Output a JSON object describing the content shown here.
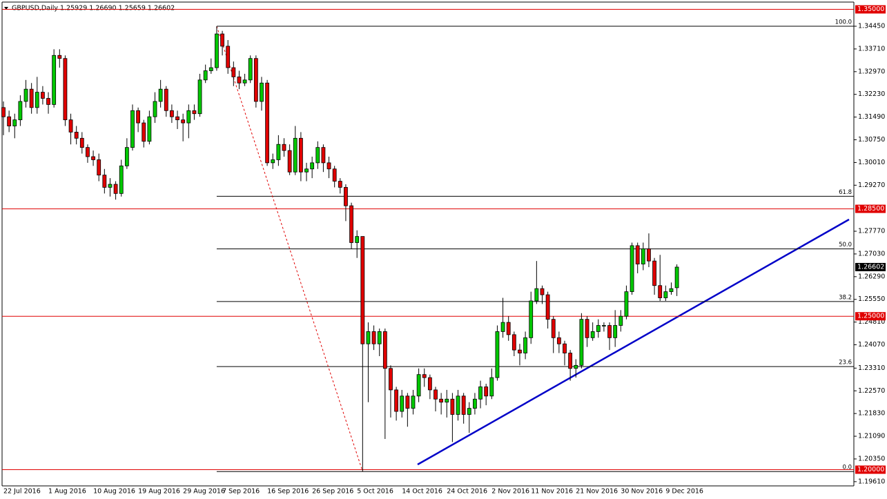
{
  "chart_data": {
    "type": "candlestick",
    "title": "GBPUSD,Daily  1.25929 1.26690 1.25659 1.26602",
    "categories": [
      "22 Jul 2016",
      null,
      null,
      null,
      null,
      null,
      null,
      null,
      "1 Aug 2016",
      null,
      null,
      null,
      null,
      null,
      null,
      null,
      "10 Aug 2016",
      null,
      null,
      null,
      null,
      null,
      null,
      null,
      "19 Aug 2016",
      null,
      null,
      null,
      null,
      null,
      null,
      null,
      "29 Aug 2016",
      null,
      null,
      null,
      null,
      null,
      null,
      "7 Sep 2016",
      null,
      null,
      null,
      null,
      null,
      null,
      null,
      "16 Sep 2016",
      null,
      null,
      null,
      null,
      null,
      null,
      null,
      "26 Sep 2016",
      null,
      null,
      null,
      null,
      null,
      null,
      null,
      "5 Oct 2016",
      null,
      null,
      null,
      null,
      null,
      null,
      null,
      "14 Oct 2016",
      null,
      null,
      null,
      null,
      null,
      null,
      null,
      "24 Oct 2016",
      null,
      null,
      null,
      null,
      null,
      null,
      null,
      "2 Nov 2016",
      null,
      null,
      null,
      null,
      null,
      null,
      "11 Nov 2016",
      null,
      null,
      null,
      null,
      null,
      null,
      null,
      "21 Nov 2016",
      null,
      null,
      null,
      null,
      null,
      null,
      null,
      "30 Nov 2016",
      null,
      null,
      null,
      null,
      null,
      null,
      null,
      "9 Dec 2016",
      null,
      null
    ],
    "open": [
      1.318,
      1.315,
      1.312,
      1.314,
      1.32,
      1.324,
      1.318,
      1.323,
      1.321,
      1.319,
      1.335,
      1.334,
      1.314,
      1.31,
      1.308,
      1.305,
      1.302,
      1.301,
      1.296,
      1.292,
      1.293,
      1.29,
      1.299,
      1.305,
      1.317,
      1.313,
      1.307,
      1.315,
      1.32,
      1.324,
      1.317,
      1.315,
      1.314,
      1.313,
      1.317,
      1.316,
      1.327,
      1.33,
      1.331,
      1.342,
      1.338,
      1.331,
      1.328,
      1.326,
      1.327,
      1.334,
      1.32,
      1.326,
      1.3,
      1.301,
      1.306,
      1.304,
      1.297,
      1.308,
      1.297,
      1.298,
      1.3,
      1.305,
      1.3,
      1.298,
      1.294,
      1.292,
      1.286,
      1.274,
      1.276,
      1.241,
      1.245,
      1.241,
      1.245,
      1.233,
      1.226,
      1.219,
      1.224,
      1.22,
      1.224,
      1.231,
      1.23,
      1.226,
      1.223,
      1.222,
      1.223,
      1.218,
      1.224,
      1.218,
      1.22,
      1.223,
      1.227,
      1.224,
      1.23,
      1.245,
      1.248,
      1.244,
      1.239,
      1.238,
      1.243,
      1.255,
      1.259,
      1.257,
      1.249,
      1.243,
      1.241,
      1.238,
      1.233,
      1.234,
      1.249,
      1.243,
      1.245,
      1.247,
      1.247,
      1.243,
      1.247,
      1.25,
      1.258,
      1.273,
      1.267,
      1.272,
      1.268,
      1.26,
      1.256,
      1.258,
      1.25929
    ],
    "high": [
      1.32,
      1.317,
      1.316,
      1.322,
      1.327,
      1.326,
      1.328,
      1.325,
      1.323,
      1.337,
      1.337,
      1.335,
      1.316,
      1.312,
      1.31,
      1.306,
      1.304,
      1.303,
      1.298,
      1.295,
      1.294,
      1.301,
      1.308,
      1.319,
      1.318,
      1.314,
      1.317,
      1.323,
      1.327,
      1.325,
      1.319,
      1.317,
      1.316,
      1.319,
      1.319,
      1.329,
      1.332,
      1.334,
      1.3445,
      1.343,
      1.34,
      1.333,
      1.33,
      1.329,
      1.335,
      1.335,
      1.328,
      1.327,
      1.303,
      1.309,
      1.308,
      1.306,
      1.312,
      1.31,
      1.3,
      1.302,
      1.307,
      1.306,
      1.302,
      1.299,
      1.295,
      1.293,
      1.287,
      1.278,
      1.276,
      1.248,
      1.247,
      1.246,
      1.246,
      1.234,
      1.227,
      1.226,
      1.225,
      1.226,
      1.233,
      1.233,
      1.231,
      1.227,
      1.225,
      1.226,
      1.225,
      1.226,
      1.225,
      1.222,
      1.225,
      1.229,
      1.228,
      1.233,
      1.247,
      1.256,
      1.25,
      1.245,
      1.241,
      1.245,
      1.258,
      1.268,
      1.26,
      1.258,
      1.25,
      1.245,
      1.242,
      1.239,
      1.236,
      1.251,
      1.25,
      1.248,
      1.249,
      1.248,
      1.248,
      1.252,
      1.252,
      1.26,
      1.274,
      1.274,
      1.274,
      1.277,
      1.269,
      1.27,
      1.26,
      1.261,
      1.2669
    ],
    "low": [
      1.309,
      1.31,
      1.308,
      1.312,
      1.318,
      1.316,
      1.316,
      1.319,
      1.316,
      1.318,
      1.331,
      1.312,
      1.306,
      1.306,
      1.303,
      1.3,
      1.299,
      1.294,
      1.29,
      1.289,
      1.288,
      1.289,
      1.298,
      1.304,
      1.31,
      1.305,
      1.306,
      1.313,
      1.318,
      1.315,
      1.313,
      1.311,
      1.307,
      1.308,
      1.314,
      1.315,
      1.326,
      1.329,
      1.33,
      1.335,
      1.329,
      1.325,
      1.324,
      1.325,
      1.326,
      1.318,
      1.317,
      1.299,
      1.298,
      1.299,
      1.302,
      1.296,
      1.296,
      1.294,
      1.294,
      1.295,
      1.298,
      1.297,
      1.295,
      1.292,
      1.29,
      1.281,
      1.272,
      1.269,
      1.1994,
      1.222,
      1.239,
      1.237,
      1.21,
      1.217,
      1.216,
      1.217,
      1.214,
      1.218,
      1.222,
      1.227,
      1.223,
      1.219,
      1.218,
      1.217,
      1.209,
      1.216,
      1.215,
      1.212,
      1.218,
      1.22,
      1.221,
      1.223,
      1.229,
      1.243,
      1.242,
      1.237,
      1.234,
      1.236,
      1.241,
      1.254,
      1.254,
      1.246,
      1.238,
      1.238,
      1.234,
      1.229,
      1.23,
      1.233,
      1.24,
      1.242,
      1.243,
      1.245,
      1.239,
      1.24,
      1.245,
      1.249,
      1.257,
      1.264,
      1.265,
      1.266,
      1.257,
      1.255,
      1.255,
      1.257,
      1.25659
    ],
    "close": [
      1.315,
      1.312,
      1.314,
      1.32,
      1.324,
      1.318,
      1.323,
      1.321,
      1.319,
      1.335,
      1.334,
      1.314,
      1.31,
      1.308,
      1.305,
      1.302,
      1.301,
      1.296,
      1.292,
      1.293,
      1.29,
      1.299,
      1.305,
      1.317,
      1.313,
      1.307,
      1.315,
      1.32,
      1.324,
      1.317,
      1.315,
      1.314,
      1.313,
      1.317,
      1.316,
      1.327,
      1.33,
      1.331,
      1.342,
      1.338,
      1.331,
      1.328,
      1.326,
      1.327,
      1.334,
      1.32,
      1.326,
      1.3,
      1.301,
      1.306,
      1.304,
      1.297,
      1.308,
      1.297,
      1.298,
      1.3,
      1.305,
      1.3,
      1.298,
      1.294,
      1.292,
      1.286,
      1.274,
      1.276,
      1.241,
      1.245,
      1.241,
      1.245,
      1.233,
      1.226,
      1.219,
      1.224,
      1.22,
      1.224,
      1.231,
      1.23,
      1.226,
      1.223,
      1.222,
      1.223,
      1.218,
      1.224,
      1.218,
      1.22,
      1.223,
      1.227,
      1.224,
      1.23,
      1.245,
      1.248,
      1.244,
      1.239,
      1.238,
      1.243,
      1.255,
      1.259,
      1.257,
      1.249,
      1.243,
      1.241,
      1.238,
      1.233,
      1.234,
      1.249,
      1.243,
      1.245,
      1.247,
      1.247,
      1.243,
      1.247,
      1.25,
      1.258,
      1.273,
      1.267,
      1.272,
      1.268,
      1.26,
      1.256,
      1.258,
      1.259,
      1.26602
    ],
    "up_color": "#00c800",
    "down_color": "#e00000",
    "ylim": [
      1.19517,
      1.35215
    ],
    "yticks": [
      {
        "value": 1.3445,
        "label": "1.34450"
      },
      {
        "value": 1.3371,
        "label": "1.33710"
      },
      {
        "value": 1.3297,
        "label": "1.32970"
      },
      {
        "value": 1.3223,
        "label": "1.32230"
      },
      {
        "value": 1.3149,
        "label": "1.31490"
      },
      {
        "value": 1.3075,
        "label": "1.30750"
      },
      {
        "value": 1.3001,
        "label": "1.30010"
      },
      {
        "value": 1.2927,
        "label": "1.29270"
      },
      {
        "value": 1.2777,
        "label": "1.27770"
      },
      {
        "value": 1.2703,
        "label": "1.27030"
      },
      {
        "value": 1.2629,
        "label": "1.26290"
      },
      {
        "value": 1.2555,
        "label": "1.25550"
      },
      {
        "value": 1.2481,
        "label": "1.24810"
      },
      {
        "value": 1.2407,
        "label": "1.24070"
      },
      {
        "value": 1.2331,
        "label": "1.23310"
      },
      {
        "value": 1.2257,
        "label": "1.22570"
      },
      {
        "value": 1.2183,
        "label": "1.21830"
      },
      {
        "value": 1.2109,
        "label": "1.21090"
      },
      {
        "value": 1.2035,
        "label": "1.20350"
      },
      {
        "value": 1.1961,
        "label": "1.19610"
      }
    ],
    "levels": [
      {
        "value": 1.35,
        "label": "1.35000"
      },
      {
        "value": 1.285,
        "label": "1.28500"
      },
      {
        "value": 1.25,
        "label": "1.25000"
      },
      {
        "value": 1.2,
        "label": "1.20000"
      }
    ],
    "level_color": "#e00000",
    "current_price": {
      "value": 1.26602,
      "label": "1.26602"
    },
    "fib_levels": [
      {
        "level": "100.0",
        "value": 1.3445
      },
      {
        "level": "61.8",
        "value": 1.2891
      },
      {
        "level": "50.0",
        "value": 1.27195
      },
      {
        "level": "38.2",
        "value": 1.2548
      },
      {
        "level": "23.6",
        "value": 1.2336
      },
      {
        "level": "0.0",
        "value": 1.1994
      }
    ],
    "fib_color": "#000000"
  }
}
